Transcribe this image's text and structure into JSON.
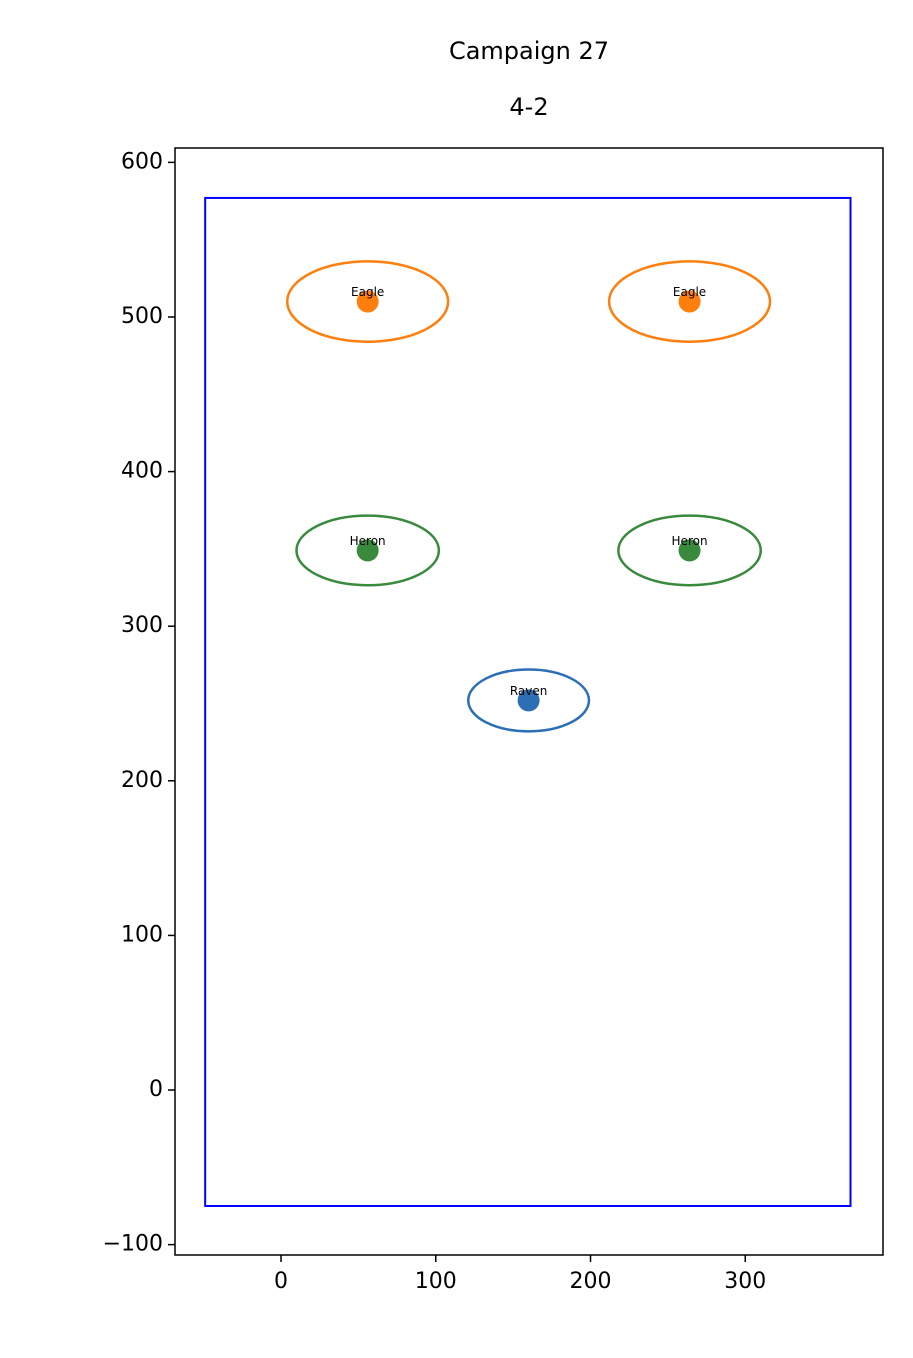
{
  "chart_data": {
    "type": "scatter",
    "title": "Campaign 27",
    "subtitle": "4-2",
    "xlim": [
      -68.5,
      389
    ],
    "ylim": [
      -106.7,
      609.3
    ],
    "xticks": [
      0,
      100,
      200,
      300
    ],
    "yticks": [
      {
        "value": -100,
        "label": "−100"
      },
      0,
      100,
      200,
      300,
      400,
      500,
      600
    ],
    "field": {
      "x": [
        -49,
        368
      ],
      "y": [
        -75,
        577
      ],
      "color": "#0000ff"
    },
    "points": [
      {
        "label": "Eagle",
        "x": 56,
        "y": 510,
        "width": 104,
        "height": 52,
        "color": "#ff7f0e"
      },
      {
        "label": "Eagle",
        "x": 264,
        "y": 510,
        "width": 104,
        "height": 52,
        "color": "#ff7f0e"
      },
      {
        "label": "Heron",
        "x": 56,
        "y": 349,
        "width": 92,
        "height": 45,
        "color": "#3a8a3e"
      },
      {
        "label": "Heron",
        "x": 264,
        "y": 349,
        "width": 92,
        "height": 45,
        "color": "#3a8a3e"
      },
      {
        "label": "Raven",
        "x": 160,
        "y": 252,
        "width": 78,
        "height": 40,
        "color": "#2c6fb5"
      }
    ]
  }
}
